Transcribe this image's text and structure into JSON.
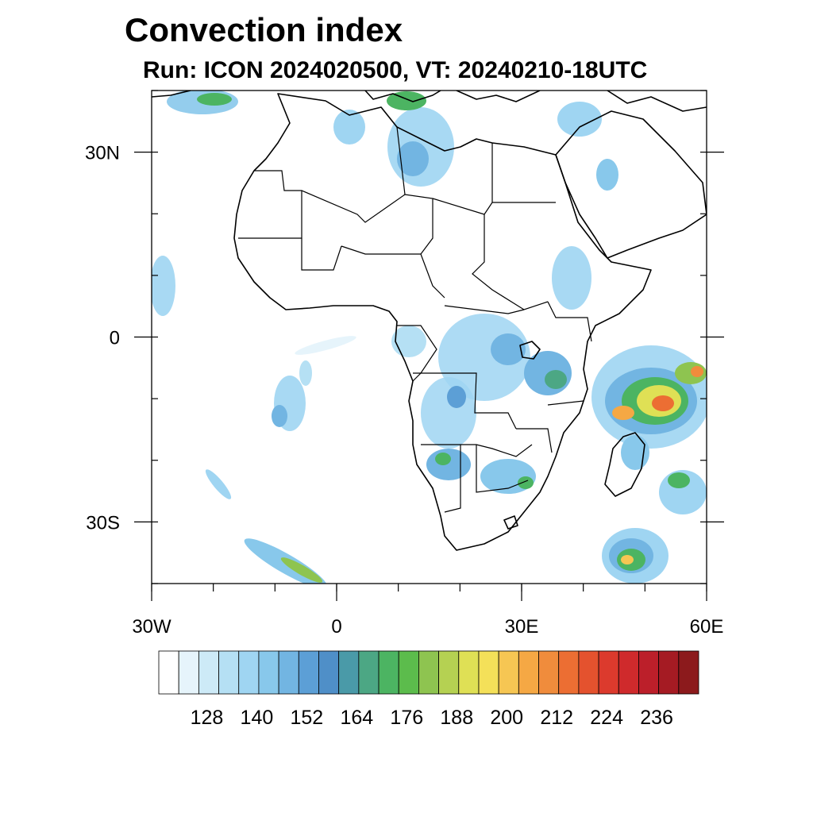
{
  "title": "Convection index",
  "subtitle": "Run: ICON 2024020500,  VT: 20240210-18UTC",
  "map": {
    "lon_range": [
      -30,
      60
    ],
    "lat_range": [
      -40,
      40
    ],
    "lon_ticks": [
      {
        "value": -30,
        "label": "30W"
      },
      {
        "value": 0,
        "label": "0"
      },
      {
        "value": 30,
        "label": "30E"
      },
      {
        "value": 60,
        "label": "60E"
      }
    ],
    "lat_ticks": [
      {
        "value": 30,
        "label": "30N"
      },
      {
        "value": 0,
        "label": "0"
      },
      {
        "value": -30,
        "label": "30S"
      }
    ]
  },
  "colorbar": {
    "colors": [
      "#ffffff",
      "#e6f4fb",
      "#cdeaf7",
      "#b5e0f4",
      "#9fd5f2",
      "#88c8eb",
      "#72b5e2",
      "#5c9fd6",
      "#4f8fc8",
      "#4a9aa8",
      "#4ca784",
      "#4cb462",
      "#5cbc4c",
      "#8ec450",
      "#b5d152",
      "#dfe055",
      "#f4e059",
      "#f6c653",
      "#f5a844",
      "#f08c3c",
      "#ec6e33",
      "#e4522e",
      "#dc3a2d",
      "#cf2a2c",
      "#bc1f2a",
      "#a51b23",
      "#8c1a1c"
    ],
    "tick_labels": [
      "128",
      "140",
      "152",
      "164",
      "176",
      "188",
      "200",
      "212",
      "224",
      "236"
    ]
  },
  "icons": {
    "coastlines": "coastline-icon"
  }
}
